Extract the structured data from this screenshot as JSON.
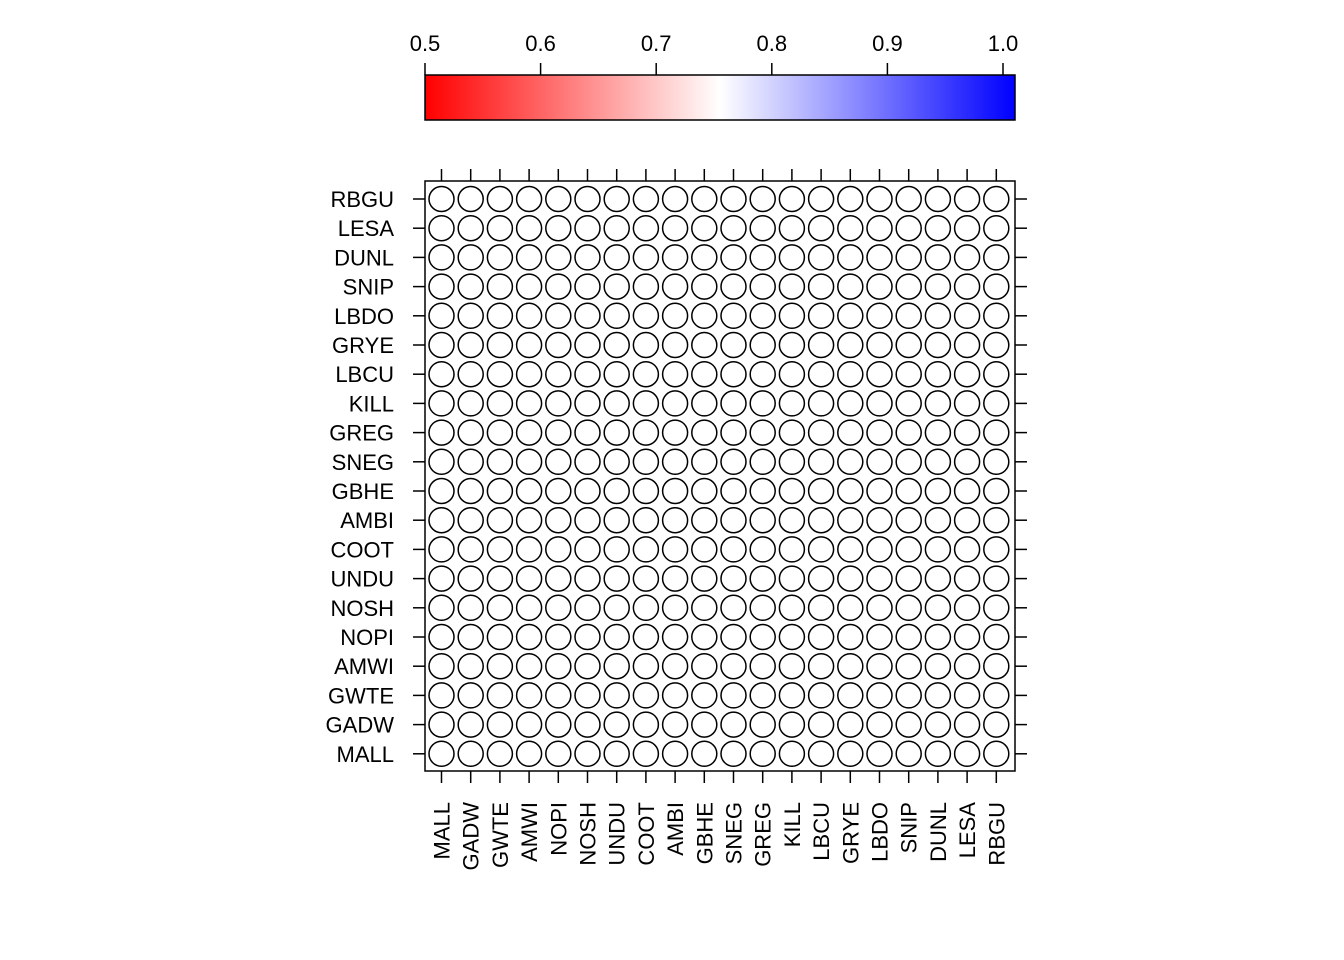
{
  "chart_data": {
    "type": "heatmap",
    "title": "",
    "xlabel": "",
    "ylabel": "",
    "x_categories": [
      "MALL",
      "GADW",
      "GWTE",
      "AMWI",
      "NOPI",
      "NOSH",
      "UNDU",
      "COOT",
      "AMBI",
      "GBHE",
      "SNEG",
      "GREG",
      "KILL",
      "LBCU",
      "GRYE",
      "LBDO",
      "SNIP",
      "DUNL",
      "LESA",
      "RBGU"
    ],
    "y_categories": [
      "RBGU",
      "LESA",
      "DUNL",
      "SNIP",
      "LBDO",
      "GRYE",
      "LBCU",
      "KILL",
      "GREG",
      "SNEG",
      "GBHE",
      "AMBI",
      "COOT",
      "UNDU",
      "NOSH",
      "NOPI",
      "AMWI",
      "GWTE",
      "GADW",
      "MALL"
    ],
    "cell_value": null,
    "marker": "open circle",
    "colorbar": {
      "ticks": [
        "0.5",
        "0.6",
        "0.7",
        "0.8",
        "0.9",
        "1.0"
      ],
      "tick_values": [
        0.5,
        0.6,
        0.7,
        0.8,
        0.9,
        1.0
      ],
      "range": [
        0.5,
        1.0
      ],
      "colors": [
        "#FF0000",
        "#FFFFFF",
        "#0000FF"
      ],
      "placement": "top"
    },
    "grid": false
  }
}
